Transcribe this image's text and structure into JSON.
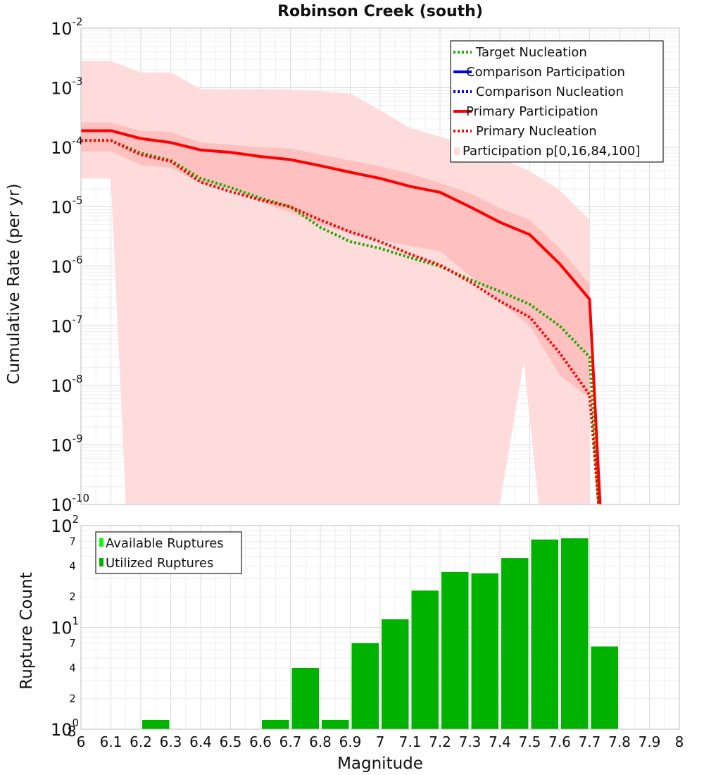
{
  "chart_data": [
    {
      "type": "line",
      "title": "Robinson Creek (south)",
      "xlabel": "",
      "ylabel": "Cumulative Rate (per yr)",
      "xlim": [
        6,
        8
      ],
      "ylim": [
        1e-10,
        0.01
      ],
      "y_scale": "log",
      "grid": true,
      "legend_position": "top-right",
      "legend": [
        {
          "label": "Target Nucleation",
          "color": "#22aa00",
          "style": "dotted"
        },
        {
          "label": "Comparison Participation",
          "color": "#0000ff",
          "style": "solid"
        },
        {
          "label": "Comparison Nucleation",
          "color": "#0000ff",
          "style": "dotted"
        },
        {
          "label": "Primary Participation",
          "color": "#ff0000",
          "style": "solid"
        },
        {
          "label": "Primary Nucleation",
          "color": "#ff0000",
          "style": "dotted"
        },
        {
          "label": "Participation p[0,16,84,100]",
          "color": "#ffdcdc",
          "style": "box"
        }
      ],
      "y_ticks": [
        {
          "base": "10",
          "exp": "-2"
        },
        {
          "base": "10",
          "exp": "-3"
        },
        {
          "base": "10",
          "exp": "-4"
        },
        {
          "base": "10",
          "exp": "-5"
        },
        {
          "base": "10",
          "exp": "-6"
        },
        {
          "base": "10",
          "exp": "-7"
        },
        {
          "base": "10",
          "exp": "-8"
        },
        {
          "base": "10",
          "exp": "-9"
        },
        {
          "base": "10",
          "exp": "-10"
        }
      ],
      "band_outer": {
        "x": [
          6.0,
          6.1,
          6.2,
          6.3,
          6.4,
          6.5,
          6.6,
          6.7,
          6.8,
          6.9,
          7.0,
          7.1,
          7.2,
          7.3,
          7.4,
          7.5,
          7.6,
          7.7
        ],
        "upper": [
          0.0028,
          0.0028,
          0.0018,
          0.0018,
          0.00095,
          0.00095,
          0.00095,
          0.00092,
          0.00088,
          0.0008,
          0.00042,
          0.00021,
          0.00015,
          0.00011,
          6.5e-05,
          4e-05,
          1.9e-05,
          6e-06
        ],
        "lower": [
          3e-05,
          3e-05,
          1e-10,
          1e-10,
          1e-10,
          1e-10,
          1e-10,
          1e-10,
          1e-10,
          1e-10,
          1e-10,
          1e-10,
          1e-10,
          1e-10,
          1e-10,
          1e-10,
          1e-10,
          1e-10
        ],
        "lower_note": "lower edge: 6.12 falls to 1e-10; 7.48 rises to 2.5e-8; 7.53 falls to 1e-10"
      },
      "band_inner": {
        "x": [
          6.0,
          6.1,
          6.2,
          6.3,
          6.4,
          6.5,
          6.6,
          6.7,
          6.8,
          6.9,
          7.0,
          7.1,
          7.2,
          7.3,
          7.4,
          7.5,
          7.6,
          7.7
        ],
        "upper": [
          0.00026,
          0.00026,
          0.00019,
          0.00018,
          0.00012,
          0.00011,
          0.0001,
          9.5e-05,
          7.5e-05,
          6e-05,
          4.8e-05,
          3.6e-05,
          2.5e-05,
          1.7e-05,
          9.5e-06,
          6e-06,
          2e-06,
          5e-07
        ],
        "lower": [
          8.5e-05,
          8.5e-05,
          5e-05,
          4.5e-05,
          2.5e-05,
          2e-05,
          1.2e-05,
          8e-06,
          5e-06,
          3.5e-06,
          2.8e-06,
          2.2e-06,
          1.8e-06,
          7e-07,
          2.5e-07,
          1e-07,
          1.5e-08,
          6e-09
        ]
      },
      "series": [
        {
          "name": "Target Nucleation",
          "color": "#22aa00",
          "style": "dotted",
          "x": [
            6.0,
            6.1,
            6.2,
            6.3,
            6.4,
            6.5,
            6.6,
            6.7,
            6.8,
            6.9,
            7.0,
            7.1,
            7.2,
            7.3,
            7.4,
            7.5,
            7.6,
            7.7,
            7.73
          ],
          "y": [
            0.00013,
            0.00013,
            8e-05,
            6e-05,
            3e-05,
            2.1e-05,
            1.4e-05,
            1e-05,
            4.5e-06,
            2.6e-06,
            2e-06,
            1.4e-06,
            1e-06,
            6e-07,
            3.8e-07,
            2.3e-07,
            1e-07,
            3e-08,
            1e-10
          ]
        },
        {
          "name": "Primary Participation",
          "color": "#ff0000",
          "style": "solid",
          "x": [
            6.0,
            6.1,
            6.2,
            6.3,
            6.4,
            6.5,
            6.6,
            6.7,
            6.8,
            6.9,
            7.0,
            7.1,
            7.2,
            7.3,
            7.4,
            7.5,
            7.6,
            7.7,
            7.735
          ],
          "y": [
            0.00019,
            0.00019,
            0.00014,
            0.00012,
            9e-05,
            8.2e-05,
            7e-05,
            6.2e-05,
            4.9e-05,
            3.8e-05,
            3e-05,
            2.2e-05,
            1.75e-05,
            1e-05,
            5.5e-06,
            3.4e-06,
            1.1e-06,
            2.8e-07,
            1e-10
          ]
        },
        {
          "name": "Primary Nucleation",
          "color": "#ff0000",
          "style": "dotted",
          "x": [
            6.0,
            6.1,
            6.2,
            6.3,
            6.4,
            6.5,
            6.6,
            6.7,
            6.8,
            6.9,
            7.0,
            7.1,
            7.2,
            7.3,
            7.4,
            7.5,
            7.6,
            7.7,
            7.73
          ],
          "y": [
            0.00013,
            0.00013,
            7.5e-05,
            5.8e-05,
            2.6e-05,
            1.8e-05,
            1.3e-05,
            1e-05,
            6e-06,
            3.8e-06,
            2.6e-06,
            1.6e-06,
            1.05e-06,
            5.5e-07,
            2.6e-07,
            1.4e-07,
            3.5e-08,
            7e-09,
            1e-10
          ]
        }
      ]
    },
    {
      "type": "bar",
      "xlabel": "Magnitude",
      "ylabel": "Rupture Count",
      "xlim": [
        6,
        8
      ],
      "ylim": [
        1,
        100
      ],
      "y_scale": "log",
      "grid": true,
      "legend_position": "top-left",
      "legend": [
        {
          "label": "Available Ruptures",
          "color": "#00ff00"
        },
        {
          "label": "Utilized Ruptures",
          "color": "#00b200"
        }
      ],
      "x_ticks": [
        "6",
        "6.1",
        "6.2",
        "6.3",
        "6.4",
        "6.5",
        "6.6",
        "6.7",
        "6.8",
        "6.9",
        "7",
        "7.1",
        "7.2",
        "7.3",
        "7.4",
        "7.5",
        "7.6",
        "7.7",
        "7.8",
        "7.9",
        "8"
      ],
      "y_major_ticks": [
        {
          "base": "10",
          "exp": "2"
        },
        {
          "base": "10",
          "exp": "1"
        },
        {
          "base": "10",
          "exp": "0"
        }
      ],
      "y_minor_ticks": [
        {
          "label": "7",
          "value": 70
        },
        {
          "label": "4",
          "value": 40
        },
        {
          "label": "2",
          "value": 20
        },
        {
          "label": "7",
          "value": 7
        },
        {
          "label": "4",
          "value": 4
        },
        {
          "label": "2",
          "value": 2
        }
      ],
      "corner_label": "8",
      "bin_width": 0.1,
      "bins": [
        {
          "center": 6.25,
          "value": 1
        },
        {
          "center": 6.65,
          "value": 1
        },
        {
          "center": 6.75,
          "value": 4
        },
        {
          "center": 6.85,
          "value": 1
        },
        {
          "center": 6.95,
          "value": 7
        },
        {
          "center": 7.05,
          "value": 12
        },
        {
          "center": 7.15,
          "value": 23
        },
        {
          "center": 7.25,
          "value": 35
        },
        {
          "center": 7.35,
          "value": 34
        },
        {
          "center": 7.45,
          "value": 48
        },
        {
          "center": 7.55,
          "value": 73
        },
        {
          "center": 7.65,
          "value": 75
        },
        {
          "center": 7.75,
          "value": 6.5
        }
      ],
      "bar_color": "#00b200"
    }
  ]
}
